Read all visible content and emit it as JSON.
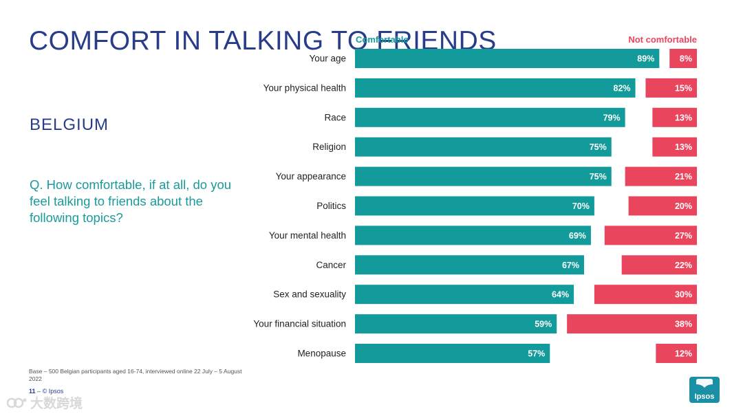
{
  "page": {
    "title": "COMFORT IN TALKING TO FRIENDS",
    "subtitle": "BELGIUM",
    "question": "Q. How comfortable, if at all, do you feel talking to friends about the following topics?",
    "base_note": "Base – 500 Belgian participants aged 16-74, interviewed online 22 July – 5 August 2022",
    "page_number": "11",
    "footer_separator": "–",
    "copyright": "© Ipsos",
    "logo_text": "Ipsos",
    "watermark_text": "大数跨境"
  },
  "colors": {
    "comfortable": "#139b9b",
    "not_comfortable": "#e9455c",
    "title": "#283c8a",
    "question": "#1a9a9a",
    "logo": "#1b8fa3"
  },
  "chart_data": {
    "type": "bar",
    "orientation": "horizontal",
    "layout": "diverging-ends",
    "categories": [
      "Your age",
      "Your physical health",
      "Race",
      "Religion",
      "Your appearance",
      "Politics",
      "Your mental health",
      "Cancer",
      "Sex and sexuality",
      "Your financial situation",
      "Menopause"
    ],
    "series": [
      {
        "name": "Comfortable",
        "anchor": "left",
        "color": "#139b9b",
        "values": [
          89,
          82,
          79,
          75,
          75,
          70,
          69,
          67,
          64,
          59,
          57
        ]
      },
      {
        "name": "Not comfortable",
        "anchor": "right",
        "color": "#e9455c",
        "values": [
          8,
          15,
          13,
          13,
          21,
          20,
          27,
          22,
          30,
          38,
          12
        ]
      }
    ],
    "value_format": "{v}%",
    "xlim": [
      0,
      100
    ]
  }
}
